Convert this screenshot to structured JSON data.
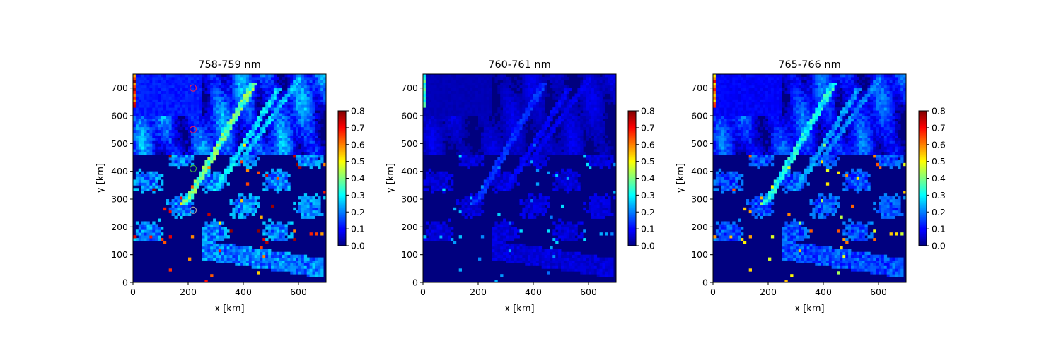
{
  "chart_data": [
    {
      "type": "heatmap",
      "title": "758-759 nm",
      "xlabel": "x [km]",
      "ylabel": "y [km]",
      "xlim": [
        0,
        700
      ],
      "ylim": [
        0,
        750
      ],
      "xticks": [
        0,
        200,
        400,
        600
      ],
      "yticks": [
        0,
        100,
        200,
        300,
        400,
        500,
        600,
        700
      ],
      "colormap": "jet",
      "color_range": [
        0.0,
        0.8
      ],
      "colorbar_ticks": [
        "0.0",
        "0.1",
        "0.2",
        "0.3",
        "0.4",
        "0.5",
        "0.6",
        "0.7",
        "0.8"
      ],
      "intensity": 1.0,
      "markers": [
        {
          "x": 218,
          "y": 700,
          "color": "#e0205a"
        },
        {
          "x": 218,
          "y": 550,
          "color": "#e0205a"
        },
        {
          "x": 218,
          "y": 410,
          "color": "#40b040"
        },
        {
          "x": 218,
          "y": 260,
          "color": "#a0a0a0"
        }
      ]
    },
    {
      "type": "heatmap",
      "title": "760-761 nm",
      "xlabel": "x [km]",
      "ylabel": "y [km]",
      "xlim": [
        0,
        700
      ],
      "ylim": [
        0,
        750
      ],
      "xticks": [
        0,
        200,
        400,
        600
      ],
      "yticks": [
        0,
        100,
        200,
        300,
        400,
        500,
        600,
        700
      ],
      "colormap": "jet",
      "color_range": [
        0.0,
        0.8
      ],
      "colorbar_ticks": [
        "0.0",
        "0.1",
        "0.2",
        "0.3",
        "0.4",
        "0.5",
        "0.6",
        "0.7",
        "0.8"
      ],
      "intensity": 0.35,
      "markers": []
    },
    {
      "type": "heatmap",
      "title": "765-766 nm",
      "xlabel": "x [km]",
      "ylabel": "y [km]",
      "xlim": [
        0,
        700
      ],
      "ylim": [
        0,
        750
      ],
      "xticks": [
        0,
        200,
        400,
        600
      ],
      "yticks": [
        0,
        100,
        200,
        300,
        400,
        500,
        600,
        700
      ],
      "colormap": "jet",
      "color_range": [
        0.0,
        0.8
      ],
      "colorbar_ticks": [
        "0.0",
        "0.1",
        "0.2",
        "0.3",
        "0.4",
        "0.5",
        "0.6",
        "0.7",
        "0.8"
      ],
      "intensity": 0.8,
      "markers": []
    }
  ]
}
